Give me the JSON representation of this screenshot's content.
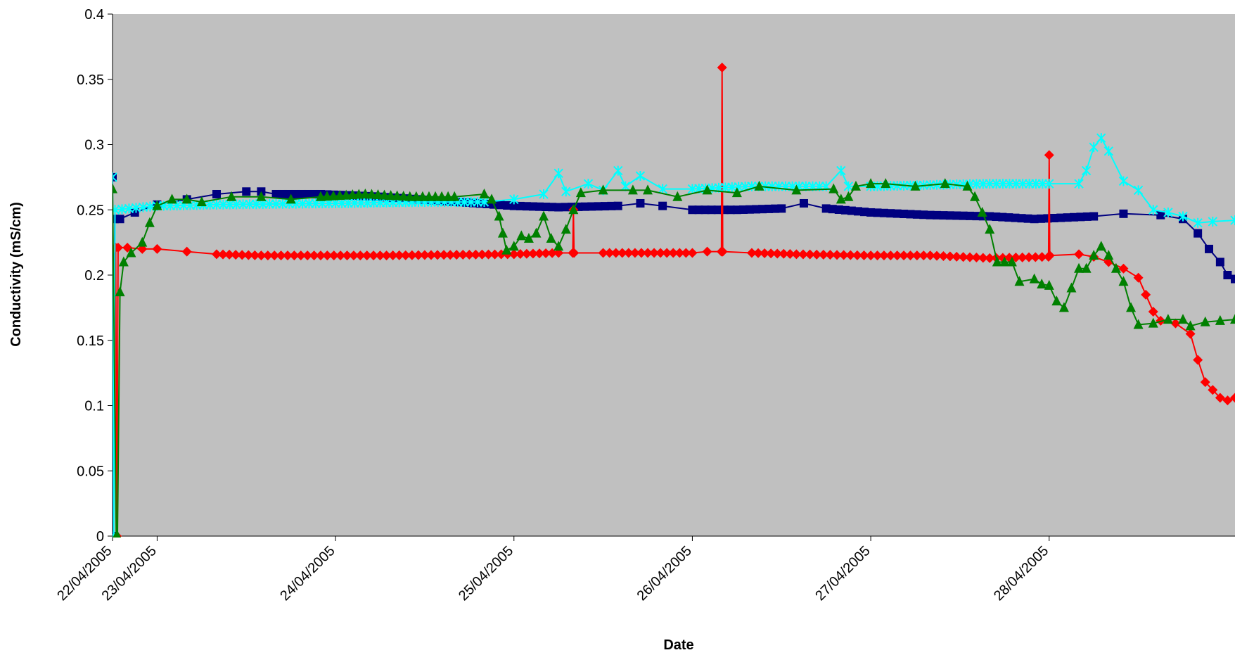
{
  "chart_data": {
    "type": "line",
    "title": "",
    "xlabel": "Date",
    "ylabel": "Conductivity (mS/cm)",
    "ylim": [
      0,
      0.4
    ],
    "xlim": [
      "2005-04-22T00:00",
      "2005-04-28T07:00"
    ],
    "yticks": [
      "0",
      "0.05",
      "0.1",
      "0.15",
      "0.2",
      "0.25",
      "0.3",
      "0.35",
      "0.4"
    ],
    "xticks": [
      {
        "label": "22/04/2005",
        "date": "2005-04-22T00:00"
      },
      {
        "label": "23/04/2005",
        "date": "2005-04-22T06:00"
      },
      {
        "label": "24/04/2005",
        "date": "2005-04-23T06:00"
      },
      {
        "label": "25/04/2005",
        "date": "2005-04-24T06:00"
      },
      {
        "label": "26/04/2005",
        "date": "2005-04-25T06:00"
      },
      {
        "label": "27/04/2005",
        "date": "2005-04-26T06:00"
      },
      {
        "label": "28/04/2005",
        "date": "2005-04-27T06:00"
      }
    ],
    "grid": false,
    "plot_background": "#c0c0c0",
    "legend": "none",
    "series": [
      {
        "color": "#000080",
        "marker": "square",
        "points": [
          [
            "2005-04-22T00:00",
            0.275
          ],
          [
            "2005-04-22T00:08",
            0.0
          ],
          [
            "2005-04-22T00:18",
            0.243
          ],
          [
            "2005-04-22T01:00",
            0.243
          ],
          [
            "2005-04-22T03:00",
            0.248
          ],
          [
            "2005-04-22T06:00",
            0.254
          ],
          [
            "2005-04-22T10:00",
            0.258
          ],
          [
            "2005-04-22T14:00",
            0.262
          ],
          [
            "2005-04-22T18:00",
            0.264
          ],
          [
            "2005-04-22T20:00",
            0.264
          ],
          [
            "2005-04-22T22:00",
            0.262
          ],
          [
            "2005-04-23T04:00",
            0.262
          ],
          [
            "2005-04-23T12:00",
            0.26
          ],
          [
            "2005-04-23T20:00",
            0.257
          ],
          [
            "2005-04-24T06:00",
            0.253
          ],
          [
            "2005-04-24T12:00",
            0.252
          ],
          [
            "2005-04-24T20:00",
            0.253
          ],
          [
            "2005-04-24T23:00",
            0.255
          ],
          [
            "2005-04-25T02:00",
            0.253
          ],
          [
            "2005-04-25T06:00",
            0.25
          ],
          [
            "2005-04-25T12:00",
            0.25
          ],
          [
            "2005-04-25T18:00",
            0.251
          ],
          [
            "2005-04-25T21:00",
            0.255
          ],
          [
            "2005-04-26T00:00",
            0.251
          ],
          [
            "2005-04-26T06:00",
            0.248
          ],
          [
            "2005-04-26T14:00",
            0.246
          ],
          [
            "2005-04-26T22:00",
            0.245
          ],
          [
            "2005-04-27T04:00",
            0.243
          ],
          [
            "2005-04-27T12:00",
            0.245
          ],
          [
            "2005-04-27T16:00",
            0.247
          ],
          [
            "2005-04-27T21:00",
            0.246
          ],
          [
            "2005-04-28T00:00",
            0.243
          ],
          [
            "2005-04-28T02:00",
            0.232
          ],
          [
            "2005-04-28T03:30",
            0.22
          ],
          [
            "2005-04-28T05:00",
            0.21
          ],
          [
            "2005-04-28T06:00",
            0.2
          ],
          [
            "2005-04-28T07:00",
            0.197
          ]
        ]
      },
      {
        "color": "#ff0000",
        "marker": "diamond",
        "points": [
          [
            "2005-04-22T00:00",
            0.22
          ],
          [
            "2005-04-22T00:25",
            0.221
          ],
          [
            "2005-04-22T00:35",
            0.0
          ],
          [
            "2005-04-22T00:45",
            0.221
          ],
          [
            "2005-04-22T02:00",
            0.221
          ],
          [
            "2005-04-22T04:00",
            0.22
          ],
          [
            "2005-04-22T06:00",
            0.22
          ],
          [
            "2005-04-22T10:00",
            0.218
          ],
          [
            "2005-04-22T14:00",
            0.216
          ],
          [
            "2005-04-22T20:00",
            0.215
          ],
          [
            "2005-04-23T12:00",
            0.215
          ],
          [
            "2005-04-24T06:00",
            0.216
          ],
          [
            "2005-04-24T12:00",
            0.217
          ],
          [
            "2005-04-24T13:55",
            0.217
          ],
          [
            "2005-04-24T14:00",
            0.25
          ],
          [
            "2005-04-24T14:05",
            0.217
          ],
          [
            "2005-04-24T18:00",
            0.217
          ],
          [
            "2005-04-25T06:00",
            0.217
          ],
          [
            "2005-04-25T08:00",
            0.218
          ],
          [
            "2005-04-25T09:55",
            0.218
          ],
          [
            "2005-04-25T10:00",
            0.359
          ],
          [
            "2005-04-25T10:05",
            0.218
          ],
          [
            "2005-04-25T14:00",
            0.217
          ],
          [
            "2005-04-25T20:00",
            0.216
          ],
          [
            "2005-04-26T06:00",
            0.215
          ],
          [
            "2005-04-26T14:00",
            0.215
          ],
          [
            "2005-04-26T22:00",
            0.213
          ],
          [
            "2005-04-27T05:55",
            0.214
          ],
          [
            "2005-04-27T06:00",
            0.292
          ],
          [
            "2005-04-27T06:05",
            0.215
          ],
          [
            "2005-04-27T10:00",
            0.216
          ],
          [
            "2005-04-27T12:00",
            0.214
          ],
          [
            "2005-04-27T14:00",
            0.21
          ],
          [
            "2005-04-27T16:00",
            0.205
          ],
          [
            "2005-04-27T18:00",
            0.198
          ],
          [
            "2005-04-27T19:00",
            0.185
          ],
          [
            "2005-04-27T20:00",
            0.172
          ],
          [
            "2005-04-27T21:00",
            0.165
          ],
          [
            "2005-04-27T23:00",
            0.163
          ],
          [
            "2005-04-28T01:00",
            0.155
          ],
          [
            "2005-04-28T02:00",
            0.135
          ],
          [
            "2005-04-28T03:00",
            0.118
          ],
          [
            "2005-04-28T04:00",
            0.112
          ],
          [
            "2005-04-28T05:00",
            0.106
          ],
          [
            "2005-04-28T06:00",
            0.104
          ],
          [
            "2005-04-28T07:00",
            0.106
          ]
        ]
      },
      {
        "color": "#00ffff",
        "marker": "star",
        "points": [
          [
            "2005-04-22T00:00",
            0.275
          ],
          [
            "2005-04-22T00:10",
            0.0
          ],
          [
            "2005-04-22T00:20",
            0.25
          ],
          [
            "2005-04-22T06:00",
            0.253
          ],
          [
            "2005-04-22T14:00",
            0.254
          ],
          [
            "2005-04-23T06:00",
            0.255
          ],
          [
            "2005-04-23T18:00",
            0.256
          ],
          [
            "2005-04-24T02:00",
            0.256
          ],
          [
            "2005-04-24T06:00",
            0.258
          ],
          [
            "2005-04-24T10:00",
            0.262
          ],
          [
            "2005-04-24T12:00",
            0.278
          ],
          [
            "2005-04-24T13:00",
            0.264
          ],
          [
            "2005-04-24T16:00",
            0.27
          ],
          [
            "2005-04-24T18:00",
            0.265
          ],
          [
            "2005-04-24T20:00",
            0.28
          ],
          [
            "2005-04-24T21:00",
            0.268
          ],
          [
            "2005-04-24T23:00",
            0.276
          ],
          [
            "2005-04-25T02:00",
            0.266
          ],
          [
            "2005-04-25T06:00",
            0.266
          ],
          [
            "2005-04-25T14:00",
            0.268
          ],
          [
            "2005-04-26T00:00",
            0.268
          ],
          [
            "2005-04-26T02:00",
            0.28
          ],
          [
            "2005-04-26T03:00",
            0.268
          ],
          [
            "2005-04-26T06:00",
            0.268
          ],
          [
            "2005-04-26T14:00",
            0.269
          ],
          [
            "2005-04-26T22:00",
            0.27
          ],
          [
            "2005-04-27T06:00",
            0.27
          ],
          [
            "2005-04-27T10:00",
            0.27
          ],
          [
            "2005-04-27T11:00",
            0.28
          ],
          [
            "2005-04-27T12:00",
            0.298
          ],
          [
            "2005-04-27T13:00",
            0.305
          ],
          [
            "2005-04-27T14:00",
            0.295
          ],
          [
            "2005-04-27T16:00",
            0.272
          ],
          [
            "2005-04-27T18:00",
            0.265
          ],
          [
            "2005-04-27T20:00",
            0.25
          ],
          [
            "2005-04-27T22:00",
            0.248
          ],
          [
            "2005-04-28T00:00",
            0.245
          ],
          [
            "2005-04-28T02:00",
            0.24
          ],
          [
            "2005-04-28T04:00",
            0.241
          ],
          [
            "2005-04-28T07:00",
            0.242
          ]
        ]
      },
      {
        "color": "#008000",
        "marker": "triangle",
        "points": [
          [
            "2005-04-22T00:00",
            0.266
          ],
          [
            "2005-04-22T00:30",
            0.0
          ],
          [
            "2005-04-22T00:40",
            0.0
          ],
          [
            "2005-04-22T01:00",
            0.187
          ],
          [
            "2005-04-22T01:30",
            0.21
          ],
          [
            "2005-04-22T02:30",
            0.217
          ],
          [
            "2005-04-22T04:00",
            0.225
          ],
          [
            "2005-04-22T05:00",
            0.24
          ],
          [
            "2005-04-22T06:00",
            0.253
          ],
          [
            "2005-04-22T08:00",
            0.258
          ],
          [
            "2005-04-22T10:00",
            0.258
          ],
          [
            "2005-04-22T12:00",
            0.256
          ],
          [
            "2005-04-22T16:00",
            0.26
          ],
          [
            "2005-04-22T20:00",
            0.26
          ],
          [
            "2005-04-23T00:00",
            0.258
          ],
          [
            "2005-04-23T04:00",
            0.26
          ],
          [
            "2005-04-23T10:00",
            0.262
          ],
          [
            "2005-04-23T16:00",
            0.26
          ],
          [
            "2005-04-23T22:00",
            0.26
          ],
          [
            "2005-04-24T02:00",
            0.262
          ],
          [
            "2005-04-24T03:00",
            0.258
          ],
          [
            "2005-04-24T04:00",
            0.245
          ],
          [
            "2005-04-24T04:30",
            0.232
          ],
          [
            "2005-04-24T05:00",
            0.219
          ],
          [
            "2005-04-24T06:00",
            0.222
          ],
          [
            "2005-04-24T07:00",
            0.23
          ],
          [
            "2005-04-24T08:00",
            0.228
          ],
          [
            "2005-04-24T09:00",
            0.232
          ],
          [
            "2005-04-24T10:00",
            0.245
          ],
          [
            "2005-04-24T11:00",
            0.228
          ],
          [
            "2005-04-24T12:00",
            0.222
          ],
          [
            "2005-04-24T13:00",
            0.235
          ],
          [
            "2005-04-24T14:00",
            0.25
          ],
          [
            "2005-04-24T15:00",
            0.263
          ],
          [
            "2005-04-24T18:00",
            0.265
          ],
          [
            "2005-04-24T22:00",
            0.265
          ],
          [
            "2005-04-25T00:00",
            0.265
          ],
          [
            "2005-04-25T04:00",
            0.26
          ],
          [
            "2005-04-25T08:00",
            0.265
          ],
          [
            "2005-04-25T12:00",
            0.263
          ],
          [
            "2005-04-25T15:00",
            0.268
          ],
          [
            "2005-04-25T20:00",
            0.265
          ],
          [
            "2005-04-26T01:00",
            0.266
          ],
          [
            "2005-04-26T02:00",
            0.258
          ],
          [
            "2005-04-26T03:00",
            0.26
          ],
          [
            "2005-04-26T04:00",
            0.268
          ],
          [
            "2005-04-26T06:00",
            0.27
          ],
          [
            "2005-04-26T08:00",
            0.27
          ],
          [
            "2005-04-26T12:00",
            0.268
          ],
          [
            "2005-04-26T16:00",
            0.27
          ],
          [
            "2005-04-26T19:00",
            0.268
          ],
          [
            "2005-04-26T20:00",
            0.26
          ],
          [
            "2005-04-26T21:00",
            0.248
          ],
          [
            "2005-04-26T22:00",
            0.235
          ],
          [
            "2005-04-26T23:00",
            0.21
          ],
          [
            "2005-04-27T00:00",
            0.21
          ],
          [
            "2005-04-27T01:00",
            0.21
          ],
          [
            "2005-04-27T02:00",
            0.195
          ],
          [
            "2005-04-27T04:00",
            0.197
          ],
          [
            "2005-04-27T05:00",
            0.193
          ],
          [
            "2005-04-27T06:00",
            0.192
          ],
          [
            "2005-04-27T07:00",
            0.18
          ],
          [
            "2005-04-27T08:00",
            0.175
          ],
          [
            "2005-04-27T09:00",
            0.19
          ],
          [
            "2005-04-27T10:00",
            0.205
          ],
          [
            "2005-04-27T11:00",
            0.205
          ],
          [
            "2005-04-27T12:00",
            0.215
          ],
          [
            "2005-04-27T13:00",
            0.222
          ],
          [
            "2005-04-27T14:00",
            0.215
          ],
          [
            "2005-04-27T15:00",
            0.205
          ],
          [
            "2005-04-27T16:00",
            0.195
          ],
          [
            "2005-04-27T17:00",
            0.175
          ],
          [
            "2005-04-27T18:00",
            0.162
          ],
          [
            "2005-04-27T20:00",
            0.163
          ],
          [
            "2005-04-27T22:00",
            0.166
          ],
          [
            "2005-04-28T00:00",
            0.166
          ],
          [
            "2005-04-28T01:00",
            0.161
          ],
          [
            "2005-04-28T03:00",
            0.164
          ],
          [
            "2005-04-28T05:00",
            0.165
          ],
          [
            "2005-04-28T07:00",
            0.166
          ]
        ]
      }
    ]
  }
}
